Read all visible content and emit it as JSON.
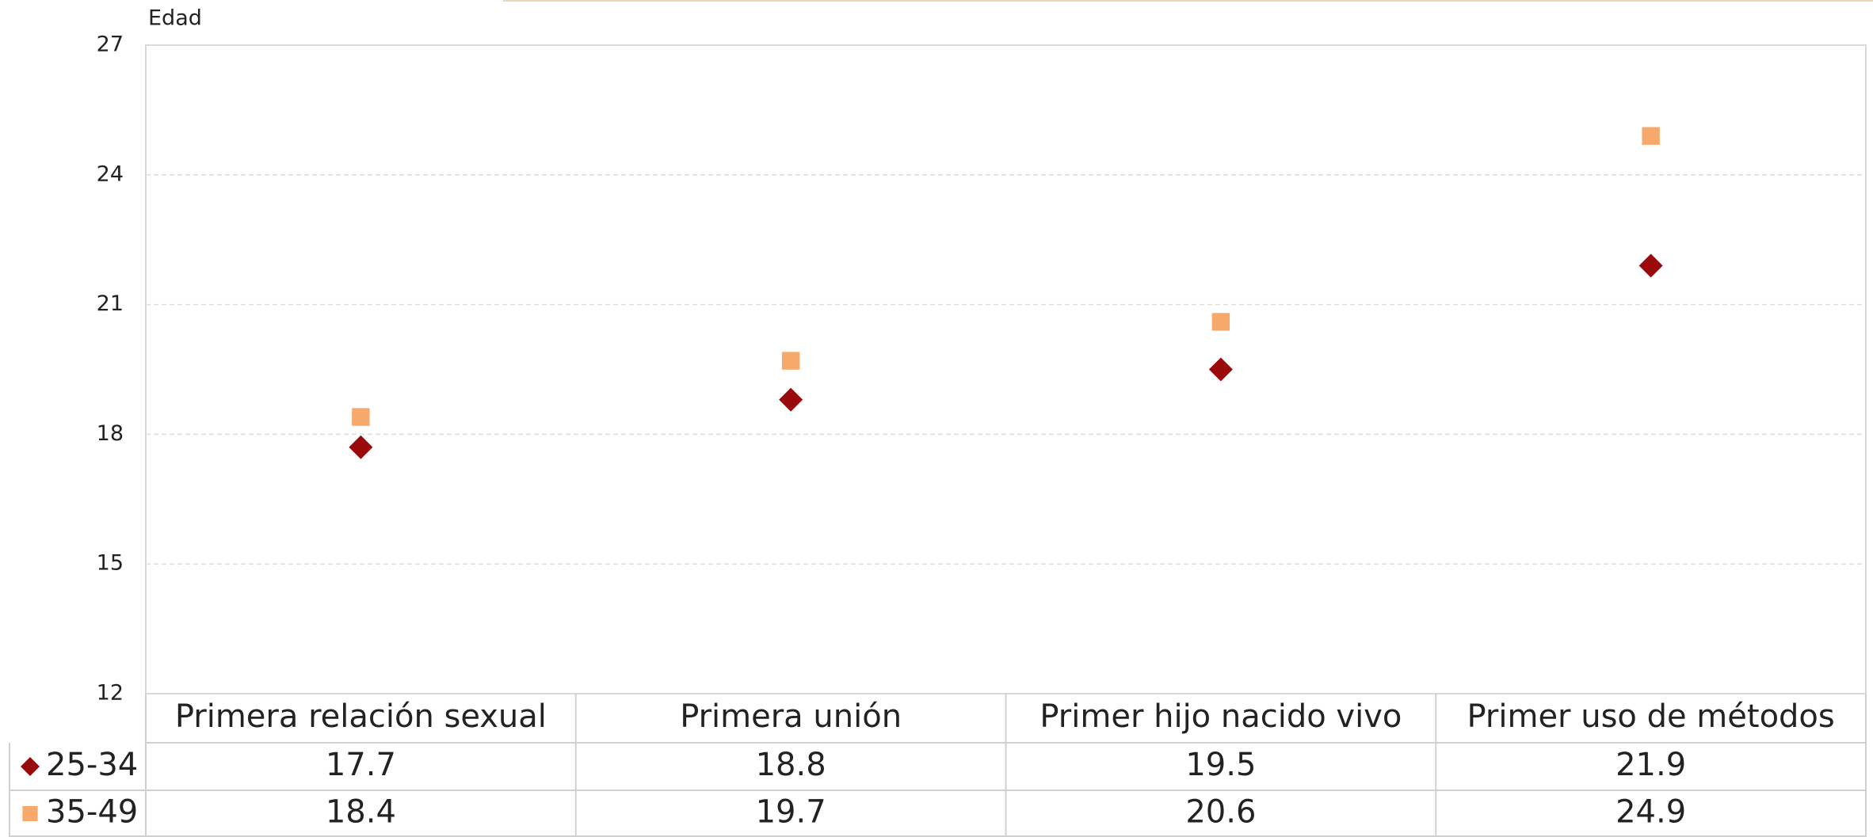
{
  "chart_data": {
    "type": "scatter",
    "y_axis_label": "Edad",
    "categories": [
      "Primera relación sexual",
      "Primera unión",
      "Primer hijo nacido vivo",
      "Primer uso de métodos"
    ],
    "series": [
      {
        "name": "25-34",
        "color": "#9b0a0a",
        "marker": "diamond",
        "values": [
          17.7,
          18.8,
          19.5,
          21.9
        ]
      },
      {
        "name": "35-49",
        "color": "#f6a96a",
        "marker": "square",
        "values": [
          18.4,
          19.7,
          20.6,
          24.9
        ]
      }
    ],
    "ylim": [
      12,
      27
    ],
    "yticks": [
      12,
      15,
      18,
      21,
      24,
      27
    ],
    "grid": true
  }
}
